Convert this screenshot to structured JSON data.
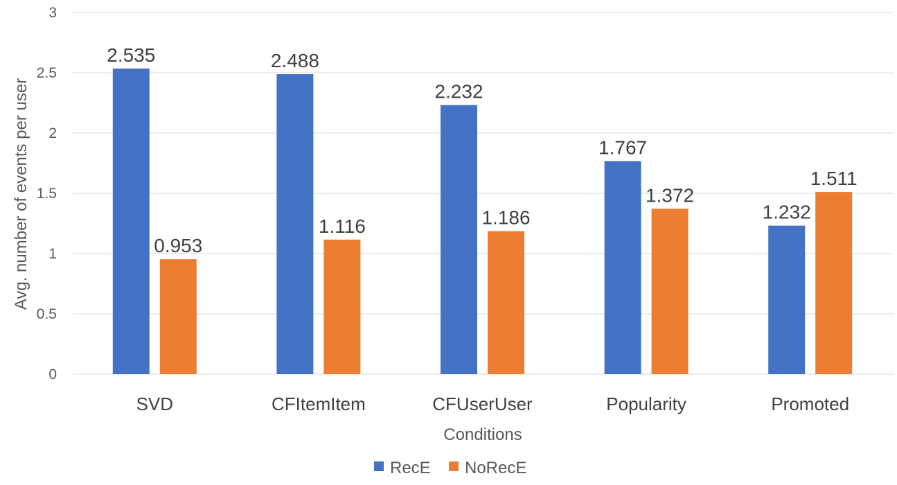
{
  "chart_data": {
    "type": "bar",
    "categories": [
      "SVD",
      "CFItemItem",
      "CFUserUser",
      "Popularity",
      "Promoted"
    ],
    "series": [
      {
        "name": "RecE",
        "values": [
          2.535,
          2.488,
          2.232,
          1.767,
          1.232
        ],
        "color": "#4472C4"
      },
      {
        "name": "NoRecE",
        "values": [
          0.953,
          1.116,
          1.186,
          1.372,
          1.511
        ],
        "color": "#ED7D31"
      }
    ],
    "data_labels": [
      [
        "2.535",
        "2.488",
        "2.232",
        "1.767",
        "1.232"
      ],
      [
        "0.953",
        "1.116",
        "1.186",
        "1.372",
        "1.511"
      ]
    ],
    "title": "",
    "xlabel": "Conditions",
    "ylabel": "Avg. number of events per user",
    "ylim": [
      0,
      3
    ],
    "yticks": [
      "0",
      "0.5",
      "1",
      "1.5",
      "2",
      "2.5",
      "3"
    ],
    "grid": true,
    "legend_position": "bottom"
  }
}
